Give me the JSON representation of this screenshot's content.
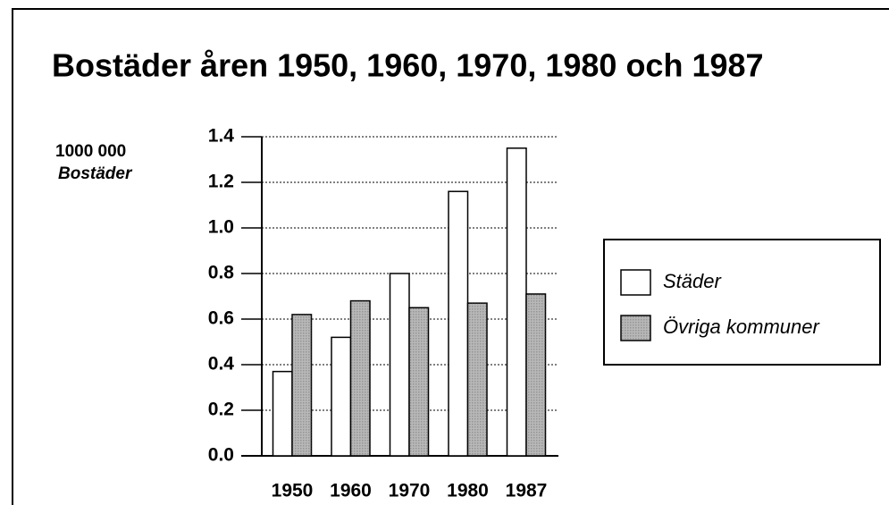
{
  "chart_data": {
    "type": "bar",
    "title": "Bostäder åren 1950, 1960, 1970, 1980 och 1987",
    "y_unit": "1000 000",
    "ylabel": "Bostäder",
    "categories": [
      "1950",
      "1960",
      "1970",
      "1980",
      "1987"
    ],
    "series": [
      {
        "name": "Städer",
        "color": "#ffffff",
        "values": [
          0.37,
          0.52,
          0.8,
          1.16,
          1.35
        ]
      },
      {
        "name": "Övriga kommuner",
        "color": "#b8b8b8",
        "values": [
          0.62,
          0.68,
          0.65,
          0.67,
          0.71
        ]
      }
    ],
    "ylim": [
      0,
      1.4
    ],
    "yticks": [
      {
        "value": 0,
        "label": "0.0"
      },
      0.2,
      0.4,
      0.6,
      0.8,
      {
        "value": 1,
        "label": "1.0"
      },
      1.2,
      1.4
    ],
    "grid": true,
    "legend": "right"
  }
}
